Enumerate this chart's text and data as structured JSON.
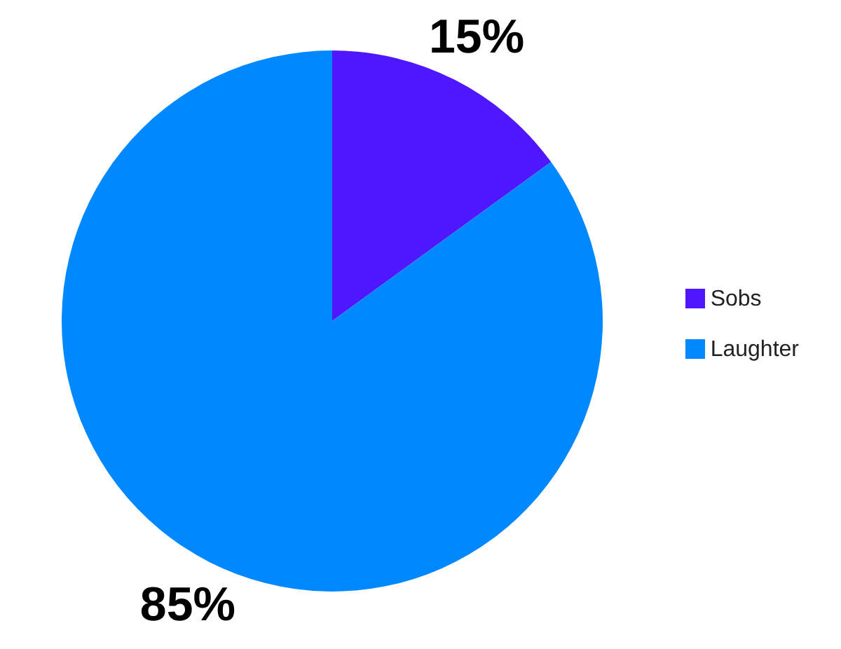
{
  "chart_data": {
    "type": "pie",
    "categories": [
      "Sobs",
      "Laughter"
    ],
    "values": [
      15,
      85
    ],
    "colors": [
      "#4f17ff",
      "#0088ff"
    ],
    "value_labels": [
      "15%",
      "85%"
    ],
    "legend": "right"
  }
}
